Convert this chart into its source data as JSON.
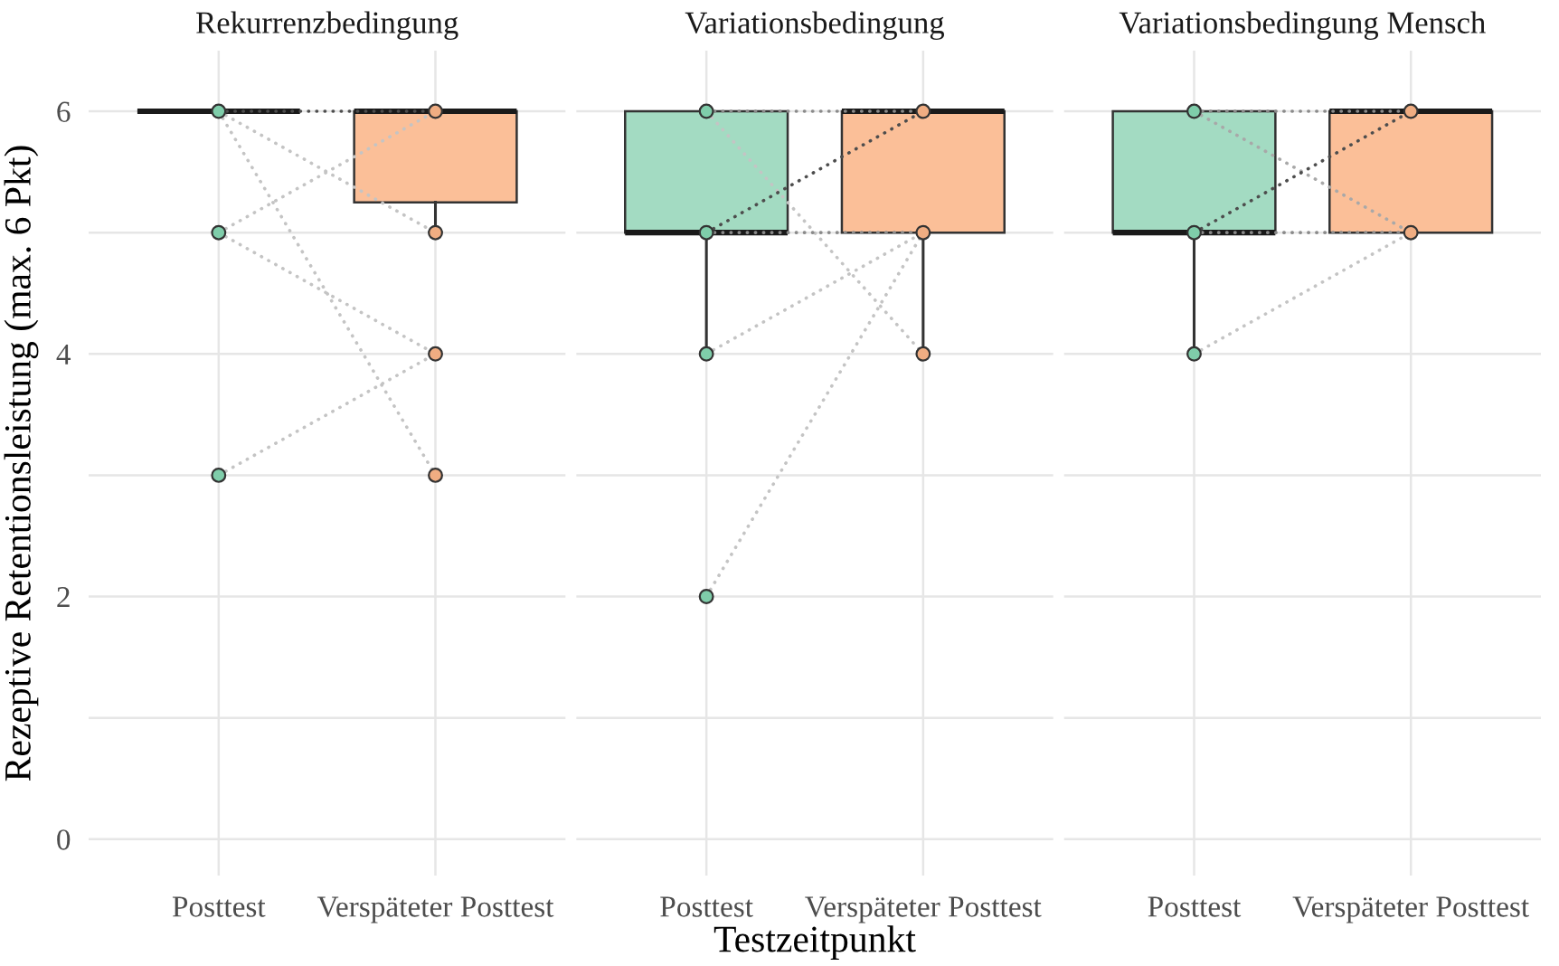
{
  "chart_data": [
    {
      "type": "box",
      "title": "Rekurrenzbedingung",
      "ylabel": "Rezeptive Retentionsleistung (max. 6 Pkt)",
      "categories": [
        "Posttest",
        "Verspäteter Posttest"
      ],
      "boxes": [
        {
          "low": 6,
          "q1": 6,
          "median": 6,
          "q3": 6,
          "high": 6
        },
        {
          "low": 5,
          "q1": 5.25,
          "median": 6,
          "q3": 6,
          "high": 6
        }
      ],
      "colors": [
        "#333333",
        "#fbbf98"
      ],
      "series": [
        {
          "type": "line",
          "x": [
            "Posttest",
            "Verspäteter Posttest"
          ],
          "values": [
            6,
            6
          ],
          "color": "#4d4d4d",
          "line_style": "dotted"
        },
        {
          "type": "line",
          "x": [
            "Posttest",
            "Verspäteter Posttest"
          ],
          "values": [
            6,
            5
          ],
          "color": "#c4c4c4",
          "line_style": "dotted"
        },
        {
          "type": "line",
          "x": [
            "Posttest",
            "Verspäteter Posttest"
          ],
          "values": [
            6,
            3
          ],
          "color": "#c4c4c4",
          "line_style": "dotted"
        },
        {
          "type": "line",
          "x": [
            "Posttest",
            "Verspäteter Posttest"
          ],
          "values": [
            5,
            6
          ],
          "color": "#c4c4c4",
          "line_style": "dotted"
        },
        {
          "type": "line",
          "x": [
            "Posttest",
            "Verspäteter Posttest"
          ],
          "values": [
            5,
            4
          ],
          "color": "#c4c4c4",
          "line_style": "dotted"
        },
        {
          "type": "line",
          "x": [
            "Posttest",
            "Verspäteter Posttest"
          ],
          "values": [
            3,
            4
          ],
          "color": "#c4c4c4",
          "line_style": "dotted"
        },
        {
          "type": "scatter",
          "x": [
            "Posttest",
            "Posttest",
            "Posttest"
          ],
          "values": [
            6,
            5,
            3
          ],
          "color": "#7fcdaa",
          "marker": "circle"
        },
        {
          "type": "scatter",
          "x": [
            "Verspäteter Posttest",
            "Verspäteter Posttest",
            "Verspäteter Posttest",
            "Verspäteter Posttest"
          ],
          "values": [
            6,
            5,
            4,
            3
          ],
          "color": "#f0ad82",
          "marker": "circle"
        }
      ],
      "ylim": [
        -0.3,
        6.5
      ],
      "yticks": [
        0,
        {
          "value": 1,
          "label": null
        },
        2,
        {
          "value": 3,
          "label": null
        },
        4,
        {
          "value": 5,
          "label": null
        },
        6
      ],
      "grid": true
    },
    {
      "type": "box",
      "title": "Variationsbedingung",
      "xlabel": "Testzeitpunkt",
      "categories": [
        "Posttest",
        "Verspäteter Posttest"
      ],
      "boxes": [
        {
          "low": 4,
          "q1": 5,
          "median": 5,
          "q3": 6,
          "high": 6
        },
        {
          "low": 4,
          "q1": 5,
          "median": 6,
          "q3": 6,
          "high": 6
        }
      ],
      "colors": [
        "#a3dbc2",
        "#fbbf98"
      ],
      "series": [
        {
          "type": "line",
          "x": [
            "Posttest",
            "Verspäteter Posttest"
          ],
          "values": [
            6,
            6
          ],
          "color": "#8a8a8a",
          "line_style": "dotted"
        },
        {
          "type": "line",
          "x": [
            "Posttest",
            "Verspäteter Posttest"
          ],
          "values": [
            6,
            4
          ],
          "color": "#c4c4c4",
          "line_style": "dotted"
        },
        {
          "type": "line",
          "x": [
            "Posttest",
            "Verspäteter Posttest"
          ],
          "values": [
            5,
            6
          ],
          "color": "#4d4d4d",
          "line_style": "dotted"
        },
        {
          "type": "line",
          "x": [
            "Posttest",
            "Verspäteter Posttest"
          ],
          "values": [
            5,
            5
          ],
          "color": "#8a8a8a",
          "line_style": "dotted"
        },
        {
          "type": "line",
          "x": [
            "Posttest",
            "Verspäteter Posttest"
          ],
          "values": [
            4,
            5
          ],
          "color": "#c4c4c4",
          "line_style": "dotted"
        },
        {
          "type": "line",
          "x": [
            "Posttest",
            "Verspäteter Posttest"
          ],
          "values": [
            2,
            5
          ],
          "color": "#c4c4c4",
          "line_style": "dotted"
        },
        {
          "type": "scatter",
          "x": [
            "Posttest",
            "Posttest",
            "Posttest",
            "Posttest"
          ],
          "values": [
            6,
            5,
            4,
            2
          ],
          "color": "#7fcdaa",
          "marker": "circle"
        },
        {
          "type": "scatter",
          "x": [
            "Verspäteter Posttest",
            "Verspäteter Posttest",
            "Verspäteter Posttest"
          ],
          "values": [
            6,
            5,
            4
          ],
          "color": "#f0ad82",
          "marker": "circle"
        }
      ],
      "ylim": [
        -0.3,
        6.5
      ],
      "yticks": [
        0,
        {
          "value": 1,
          "label": null
        },
        2,
        {
          "value": 3,
          "label": null
        },
        4,
        {
          "value": 5,
          "label": null
        },
        6
      ],
      "grid": true,
      "tick_labels": "x"
    },
    {
      "type": "box",
      "title": "Variationsbedingung Mensch",
      "categories": [
        "Posttest",
        "Verspäteter Posttest"
      ],
      "boxes": [
        {
          "low": 4,
          "q1": 5,
          "median": 5,
          "q3": 6,
          "high": 6
        },
        {
          "low": 5,
          "q1": 5,
          "median": 6,
          "q3": 6,
          "high": 6
        }
      ],
      "colors": [
        "#a3dbc2",
        "#fbbf98"
      ],
      "series": [
        {
          "type": "line",
          "x": [
            "Posttest",
            "Verspäteter Posttest"
          ],
          "values": [
            6,
            6
          ],
          "color": "#8a8a8a",
          "line_style": "dotted"
        },
        {
          "type": "line",
          "x": [
            "Posttest",
            "Verspäteter Posttest"
          ],
          "values": [
            6,
            5
          ],
          "color": "#a8a8a8",
          "line_style": "dotted"
        },
        {
          "type": "line",
          "x": [
            "Posttest",
            "Verspäteter Posttest"
          ],
          "values": [
            5,
            6
          ],
          "color": "#4d4d4d",
          "line_style": "dotted"
        },
        {
          "type": "line",
          "x": [
            "Posttest",
            "Verspäteter Posttest"
          ],
          "values": [
            5,
            5
          ],
          "color": "#8a8a8a",
          "line_style": "dotted"
        },
        {
          "type": "line",
          "x": [
            "Posttest",
            "Verspäteter Posttest"
          ],
          "values": [
            4,
            5
          ],
          "color": "#c4c4c4",
          "line_style": "dotted"
        },
        {
          "type": "scatter",
          "x": [
            "Posttest",
            "Posttest",
            "Posttest"
          ],
          "values": [
            6,
            5,
            4
          ],
          "color": "#7fcdaa",
          "marker": "circle"
        },
        {
          "type": "scatter",
          "x": [
            "Verspäteter Posttest",
            "Verspäteter Posttest"
          ],
          "values": [
            6,
            5
          ],
          "color": "#f0ad82",
          "marker": "circle"
        }
      ],
      "ylim": [
        -0.3,
        6.5
      ],
      "yticks": [
        0,
        {
          "value": 1,
          "label": null
        },
        2,
        {
          "value": 3,
          "label": null
        },
        4,
        {
          "value": 5,
          "label": null
        },
        6
      ],
      "grid": true,
      "tick_labels": "x"
    }
  ]
}
